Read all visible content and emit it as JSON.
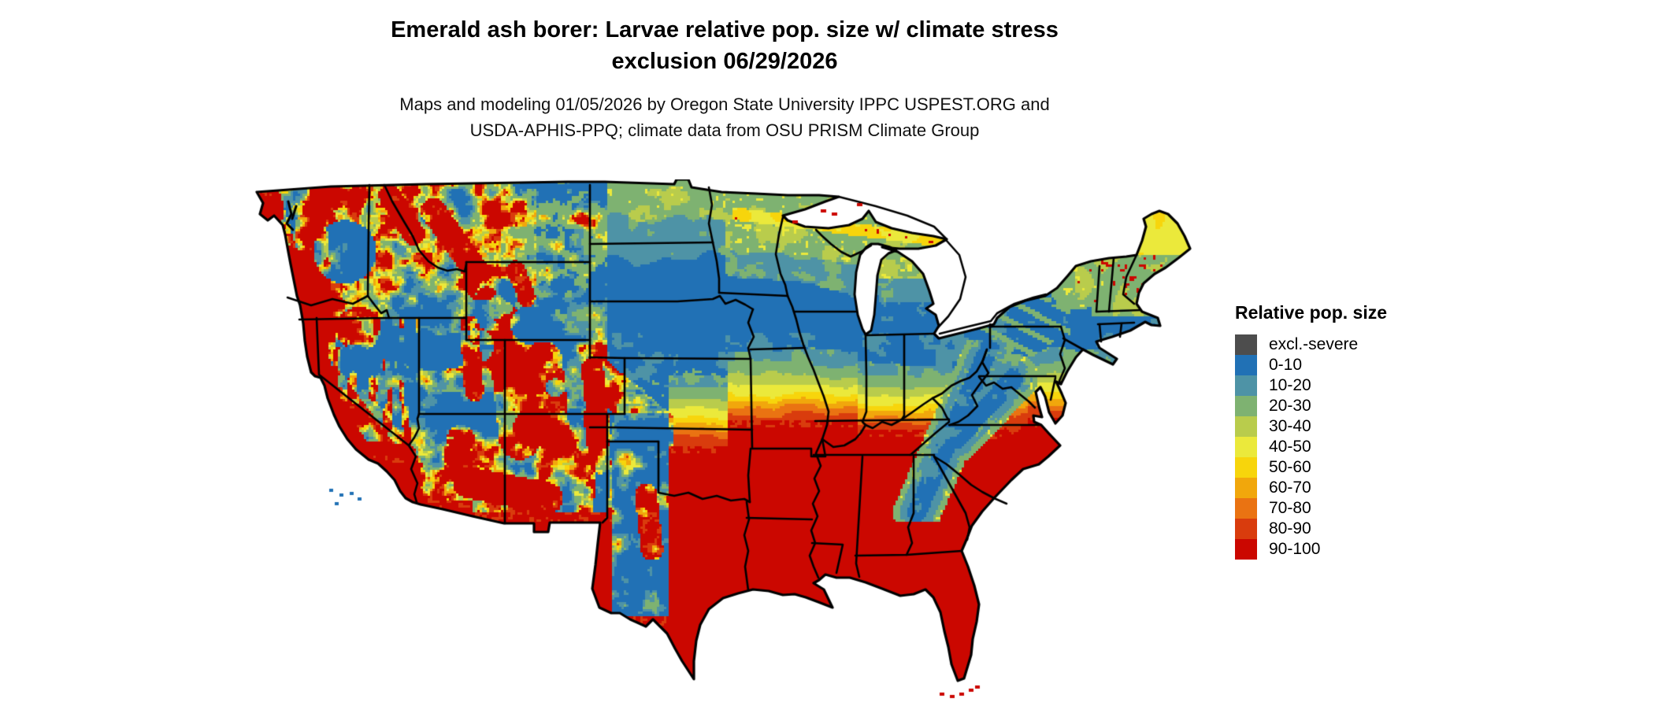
{
  "title": {
    "line1": "Emerald ash borer: Larvae relative pop. size w/ climate stress",
    "line2": "exclusion 06/29/2026"
  },
  "subtitle": {
    "line1": "Maps and modeling 01/05/2026 by Oregon State University IPPC USPEST.ORG and",
    "line2": "USDA-APHIS-PPQ; climate data from OSU PRISM Climate Group"
  },
  "legend": {
    "title": "Relative pop. size",
    "entries": [
      {
        "label": "excl.-severe",
        "color": "#4D4D4D"
      },
      {
        "label": "0-10",
        "color": "#2171B5"
      },
      {
        "label": "10-20",
        "color": "#4E93A6"
      },
      {
        "label": "20-30",
        "color": "#7EB271"
      },
      {
        "label": "30-40",
        "color": "#B9CC4C"
      },
      {
        "label": "40-50",
        "color": "#EBE93B"
      },
      {
        "label": "50-60",
        "color": "#F7D50C"
      },
      {
        "label": "60-70",
        "color": "#F1A70C"
      },
      {
        "label": "70-80",
        "color": "#EA7312"
      },
      {
        "label": "80-90",
        "color": "#D93C0D"
      },
      {
        "label": "90-100",
        "color": "#CB0700"
      }
    ]
  },
  "map": {
    "background_color": "#FFFFFF",
    "border_color": "#000000",
    "water_color": "#FFFFFF"
  }
}
